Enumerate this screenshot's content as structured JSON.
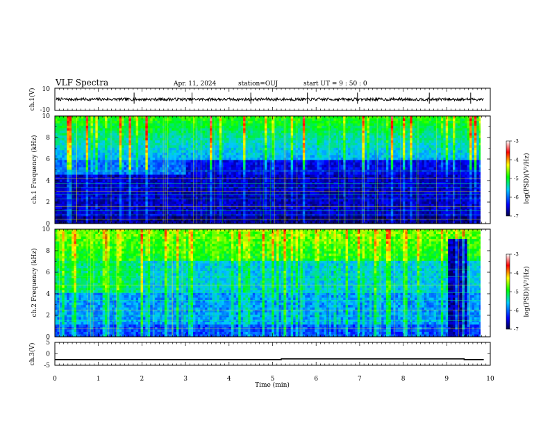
{
  "header": {
    "title": "VLF Spectra",
    "date": "Apr. 11, 2024",
    "station": "station=OUJ",
    "start": "start  UT =   9 : 50 : 0"
  },
  "chart_data": [
    {
      "panel": "ch1-waveform",
      "type": "line",
      "ylabel": "ch.1(V)",
      "ylim": [
        -10,
        10
      ],
      "yticks": [
        "10",
        "-10"
      ],
      "baseline": 0,
      "spikes_min": [
        1.82,
        3.15,
        4.5,
        5.8,
        6.95,
        8.6,
        9.55
      ]
    },
    {
      "panel": "ch1-spectrogram",
      "type": "heatmap",
      "ylabel": "ch.1 Frequency (kHz)",
      "ylim": [
        0,
        10
      ],
      "yticks": [
        "0",
        "2",
        "4",
        "6",
        "8",
        "10"
      ],
      "colorbar": {
        "label": "log(PSD)(V²/Hz)",
        "range": [
          -7,
          -3
        ],
        "ticks": [
          "-3",
          "-4",
          "-5",
          "-6",
          "-7"
        ]
      }
    },
    {
      "panel": "ch2-spectrogram",
      "type": "heatmap",
      "ylabel": "ch.2 Frequency (kHz)",
      "ylim": [
        0,
        10
      ],
      "yticks": [
        "0",
        "2",
        "4",
        "6",
        "8",
        "10"
      ],
      "colorbar": {
        "label": "log(PSD)(V²/Hz)",
        "range": [
          -7,
          -3
        ],
        "ticks": [
          "-3",
          "-4",
          "-5",
          "-6",
          "-7"
        ]
      }
    },
    {
      "panel": "ch3-waveform",
      "type": "line",
      "ylabel": "ch.3(V)",
      "ylim": [
        -5,
        5
      ],
      "yticks": [
        "5",
        "0",
        "-5"
      ],
      "x": [
        0,
        5.2,
        5.2,
        9.4,
        9.4,
        9.85
      ],
      "y": [
        -2.5,
        -2.5,
        -2.2,
        -2.2,
        -2.5,
        -2.5
      ]
    }
  ],
  "xaxis": {
    "label": "Time  (min)",
    "range": [
      0,
      10
    ],
    "ticks": [
      "0",
      "1",
      "2",
      "3",
      "4",
      "5",
      "6",
      "7",
      "8",
      "9",
      "10"
    ]
  },
  "colors": {
    "background": "#ffffff",
    "axis": "#000000",
    "colormap": [
      "#000044",
      "#0000ff",
      "#00c8ff",
      "#00ff00",
      "#ffff00",
      "#ff0000",
      "#ffffff"
    ]
  }
}
